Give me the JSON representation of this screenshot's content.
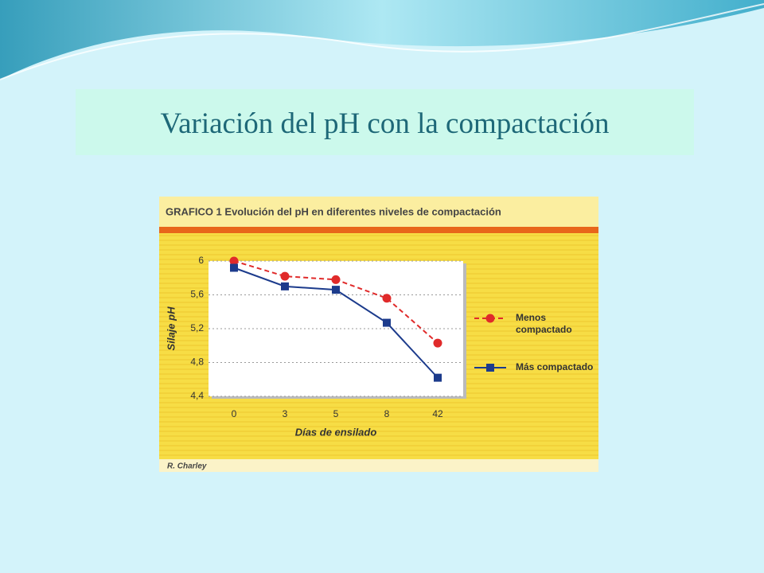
{
  "slide_title": "Variación del  pH con la compactación",
  "chart_data": {
    "type": "line",
    "title": "GRAFICO 1 Evolución del pH en diferentes niveles de compactación",
    "categories": [
      "0",
      "3",
      "5",
      "8",
      "42"
    ],
    "x_label": "Días de ensilado",
    "y_label": "Silaje pH",
    "ylim": [
      4.4,
      6
    ],
    "yticks": [
      {
        "value": 4.4,
        "label": "4,4"
      },
      {
        "value": 4.8,
        "label": "4,8"
      },
      {
        "value": 5.2,
        "label": "5,2"
      },
      {
        "value": 5.6,
        "label": "5,6"
      },
      6
    ],
    "grid": true,
    "legend": "right",
    "series": [
      {
        "name": "Menos compactado",
        "color": "#e02a2a",
        "dashed": true,
        "marker": "circle",
        "values": [
          6.0,
          5.82,
          5.78,
          5.56,
          5.03
        ]
      },
      {
        "name": "Más compactado",
        "color": "#1c3b8c",
        "dashed": false,
        "marker": "square",
        "values": [
          5.92,
          5.7,
          5.66,
          5.27,
          4.62
        ]
      }
    ],
    "source": "R. Charley"
  }
}
